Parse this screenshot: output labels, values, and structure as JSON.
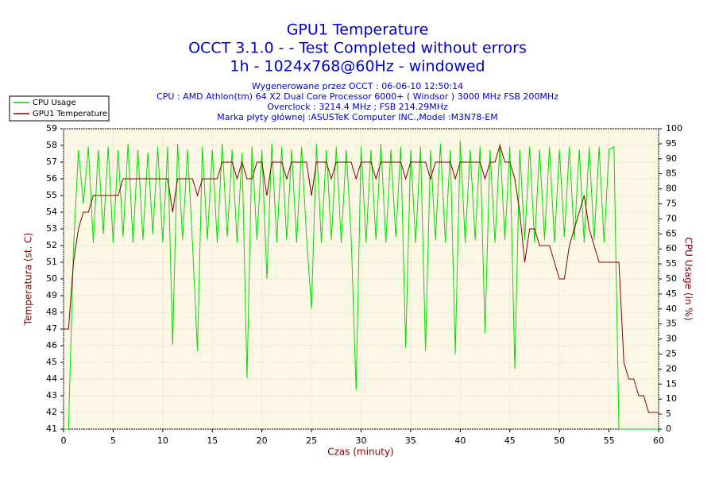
{
  "chart_data": {
    "type": "line",
    "title": "GPU1 Temperature",
    "subtitle_lines": [
      "OCCT 3.1.0 -  - Test Completed without errors",
      "1h - 1024x768@60Hz - windowed"
    ],
    "info_lines": [
      "Wygenerowane przez OCCT : 06-06-10 12:50:14",
      "CPU : AMD Athlon(tm) 64 X2 Dual Core Processor 6000+ ( Windsor ) 3000 MHz FSB 200MHz",
      "Overclock : 3214.4 MHz ; FSB 214.29MHz",
      "Marka płyty głównej :ASUSTeK Computer INC.,Model :M3N78-EM"
    ],
    "xlabel": "Czas (minuty)",
    "ylabel": "Temperatura (st. C)",
    "y2label": "CPU Usage (in %)",
    "xlim": [
      0,
      60
    ],
    "xticks": [
      0,
      5,
      10,
      15,
      20,
      25,
      30,
      35,
      40,
      45,
      50,
      55,
      60
    ],
    "ylim": [
      41,
      59
    ],
    "yticks": [
      41,
      42,
      43,
      44,
      45,
      46,
      47,
      48,
      49,
      50,
      51,
      52,
      53,
      54,
      55,
      56,
      57,
      58,
      59
    ],
    "y2lim": [
      0,
      100
    ],
    "y2ticks": [
      0,
      5,
      10,
      15,
      20,
      25,
      30,
      35,
      40,
      45,
      50,
      55,
      60,
      65,
      70,
      75,
      80,
      85,
      90,
      95,
      100
    ],
    "grid": true,
    "legend": "top-left",
    "x": [
      0,
      0.5,
      1,
      1.5,
      2,
      2.5,
      3,
      3.5,
      4,
      4.5,
      5,
      5.5,
      6,
      6.5,
      7,
      7.5,
      8,
      8.5,
      9,
      9.5,
      10,
      10.5,
      11,
      11.5,
      12,
      12.5,
      13,
      13.5,
      14,
      14.5,
      15,
      15.5,
      16,
      16.5,
      17,
      17.5,
      18,
      18.5,
      19,
      19.5,
      20,
      20.5,
      21,
      21.5,
      22,
      22.5,
      23,
      23.5,
      24,
      24.5,
      25,
      25.5,
      26,
      26.5,
      27,
      27.5,
      28,
      28.5,
      29,
      29.5,
      30,
      30.5,
      31,
      31.5,
      32,
      32.5,
      33,
      33.5,
      34,
      34.5,
      35,
      35.5,
      36,
      36.5,
      37,
      37.5,
      38,
      38.5,
      39,
      39.5,
      40,
      40.5,
      41,
      41.5,
      42,
      42.5,
      43,
      43.5,
      44,
      44.5,
      45,
      45.5,
      46,
      46.5,
      47,
      47.5,
      48,
      48.5,
      49,
      49.5,
      50,
      50.5,
      51,
      51.5,
      52,
      52.5,
      53,
      53.5,
      54,
      54.5,
      55,
      55.5,
      56,
      56.5,
      57,
      57.5,
      58,
      58.5,
      59,
      59.5,
      60
    ],
    "series": [
      {
        "name": "CPU Usage",
        "color": "#00dd00",
        "axis": "y2",
        "values": [
          0,
          0,
          60,
          93,
          75,
          94,
          62,
          93,
          65,
          94,
          62,
          93,
          64,
          95,
          62,
          93,
          63,
          92,
          65,
          94,
          62,
          94,
          28,
          95,
          63,
          93,
          62,
          26,
          94,
          63,
          93,
          62,
          95,
          64,
          93,
          62,
          92,
          17,
          94,
          63,
          93,
          50,
          95,
          62,
          94,
          63,
          93,
          62,
          94,
          64,
          40,
          95,
          62,
          93,
          63,
          94,
          62,
          93,
          64,
          13,
          94,
          62,
          93,
          63,
          95,
          62,
          93,
          64,
          94,
          27,
          93,
          62,
          94,
          26,
          93,
          63,
          95,
          62,
          93,
          25,
          96,
          62,
          93,
          63,
          94,
          32,
          93,
          62,
          95,
          63,
          94,
          20,
          93,
          63,
          94,
          62,
          93,
          63,
          94,
          62,
          93,
          64,
          94,
          63,
          93,
          62,
          94,
          63,
          94,
          62,
          93,
          94,
          0,
          0,
          0,
          0,
          0,
          0,
          0,
          0,
          0
        ]
      },
      {
        "name": "GPU1 Temperature",
        "color": "#800000",
        "values": [
          47,
          47,
          51,
          53,
          54,
          54,
          55,
          55,
          55,
          55,
          55,
          55,
          56,
          56,
          56,
          56,
          56,
          56,
          56,
          56,
          56,
          56,
          54,
          56,
          56,
          56,
          56,
          55,
          56,
          56,
          56,
          56,
          57,
          57,
          57,
          56,
          57,
          56,
          56,
          57,
          57,
          55,
          57,
          57,
          57,
          56,
          57,
          57,
          57,
          57,
          55,
          57,
          57,
          57,
          56,
          57,
          57,
          57,
          57,
          56,
          57,
          57,
          57,
          56,
          57,
          57,
          57,
          57,
          57,
          56,
          57,
          57,
          57,
          57,
          56,
          57,
          57,
          57,
          57,
          56,
          57,
          57,
          57,
          57,
          57,
          56,
          57,
          57,
          58,
          57,
          57,
          56,
          54,
          51,
          53,
          53,
          52,
          52,
          52,
          51,
          50,
          50,
          52,
          53,
          54,
          55,
          53,
          52,
          51,
          51,
          51,
          51,
          51,
          45,
          44,
          44,
          43,
          43,
          42,
          42,
          42
        ]
      }
    ]
  }
}
